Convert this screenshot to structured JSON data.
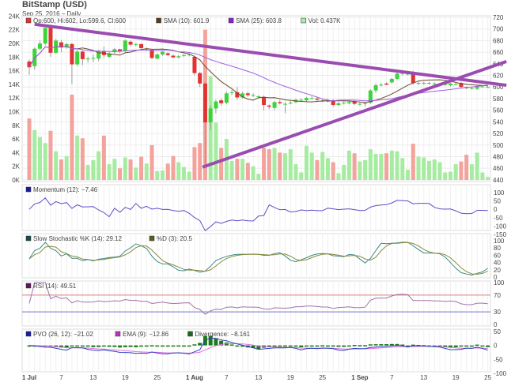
{
  "header": {
    "title": "BitStamp (USD)",
    "subtitle": "Sep 25, 2016 – Daily"
  },
  "colors": {
    "up": "#39d639",
    "down": "#e23232",
    "vol_up": "#a6eca0",
    "vol_down": "#f3a29c",
    "sma10": "#6b4a2a",
    "sma25": "#a15ee0",
    "trendline": "#9a4cb0",
    "momentum": "#5a4fc8",
    "stoch_k": "#3b8a8a",
    "stoch_d": "#8a8a3b",
    "rsi": "#a173a8",
    "rsi_70": "#d77c7c",
    "rsi_30": "#6f6fd0",
    "pvo": "#2f3fc0",
    "pvo_ema": "#e070e0",
    "divergence": "#1b7a1b"
  },
  "legends": {
    "main": [
      {
        "label": "Op:600, Hi:602, Lo:599.6, Cl:600",
        "color": "#e23232"
      },
      {
        "label": "SMA (10): 601.9",
        "color": "#5a3a1a"
      },
      {
        "label": "SMA (25): 603.8",
        "color": "#8a1fd0"
      },
      {
        "label": "Vol: 0.437K",
        "color": "#a6eca0"
      }
    ],
    "momentum": [
      {
        "label": "Momentum (12): −7.46",
        "color": "#1a1aa0"
      }
    ],
    "stoch": [
      {
        "label": "Slow Stochastic %K (14): 29.12",
        "color": "#1a4a4a"
      },
      {
        "label": "%D (3): 20.5",
        "color": "#5a5a1a"
      }
    ],
    "rsi": [
      {
        "label": "RSI (14): 49.51",
        "color": "#5a1a5a"
      }
    ],
    "pvo": [
      {
        "label": "PVO (26, 12): −21.02",
        "color": "#1a1ab0"
      },
      {
        "label": "EMA (9): −12.86",
        "color": "#c030c0"
      },
      {
        "label": "Divergence: −8.161",
        "color": "#1b6a1b"
      }
    ]
  },
  "chart_data": {
    "type": "candlestick",
    "title": "BitStamp (USD)",
    "start_date": "2016-07-01",
    "end_date": "2016-09-25",
    "fields": [
      "open",
      "high",
      "low",
      "close",
      "volume_K"
    ],
    "ohlcv": [
      [
        644,
        647,
        621,
        634,
        9.0
      ],
      [
        636,
        668,
        630,
        666,
        7.3
      ],
      [
        666,
        680,
        664,
        675,
        6.3
      ],
      [
        675,
        702,
        672,
        702,
        5.4
      ],
      [
        702,
        704,
        652,
        659,
        7.2
      ],
      [
        659,
        683,
        657,
        680,
        4.2
      ],
      [
        677,
        681,
        660,
        668,
        3.0
      ],
      [
        668,
        676,
        666,
        674,
        3.5
      ],
      [
        674,
        676,
        605,
        639,
        12.5
      ],
      [
        639,
        664,
        636,
        661,
        6.5
      ],
      [
        661,
        663,
        638,
        648,
        6.1
      ],
      [
        649,
        652,
        642,
        649,
        2.2
      ],
      [
        650,
        656,
        643,
        650,
        2.9
      ],
      [
        649,
        664,
        645,
        662,
        4.2
      ],
      [
        662,
        670,
        650,
        655,
        6.5
      ],
      [
        652,
        660,
        650,
        658,
        2.3
      ],
      [
        660,
        667,
        658,
        665,
        3.1
      ],
      [
        665,
        666,
        658,
        662,
        1.7
      ],
      [
        662,
        682,
        660,
        680,
        3.3
      ],
      [
        678,
        680,
        670,
        673,
        3.0
      ],
      [
        674,
        676,
        670,
        674,
        1.8
      ],
      [
        674,
        675,
        665,
        667,
        3.4
      ],
      [
        666,
        668,
        662,
        666,
        2.4
      ],
      [
        664,
        665,
        648,
        650,
        5.1
      ],
      [
        649,
        658,
        647,
        656,
        1.3
      ],
      [
        656,
        662,
        654,
        661,
        1.4
      ],
      [
        658,
        660,
        653,
        655,
        2.4
      ],
      [
        654,
        656,
        649,
        651,
        3.5
      ],
      [
        651,
        655,
        649,
        653,
        2.6
      ],
      [
        655,
        657,
        652,
        655,
        1.9
      ],
      [
        656,
        658,
        653,
        656,
        1.2
      ],
      [
        652,
        654,
        620,
        624,
        4.8
      ],
      [
        624,
        626,
        600,
        606,
        5.4
      ],
      [
        606,
        608,
        465,
        539,
        22.0
      ],
      [
        539,
        568,
        525,
        563,
        15.2
      ],
      [
        563,
        578,
        555,
        575,
        8.4
      ],
      [
        577,
        580,
        568,
        572,
        4.7
      ],
      [
        573,
        592,
        570,
        589,
        6.0
      ],
      [
        591,
        595,
        586,
        591,
        2.8
      ],
      [
        591,
        600,
        578,
        582,
        3.1
      ],
      [
        582,
        592,
        580,
        589,
        3.1
      ],
      [
        589,
        592,
        583,
        586,
        2.5
      ],
      [
        586,
        589,
        583,
        586,
        2.0
      ],
      [
        584,
        586,
        580,
        584,
        0.9
      ],
      [
        583,
        585,
        560,
        569,
        4.7
      ],
      [
        568,
        570,
        562,
        566,
        4.5
      ],
      [
        564,
        576,
        560,
        574,
        4.7
      ],
      [
        574,
        578,
        570,
        572,
        4.0
      ],
      [
        571,
        574,
        555,
        571,
        3.9
      ],
      [
        573,
        576,
        570,
        573,
        4.5
      ],
      [
        574,
        580,
        572,
        578,
        2.3
      ],
      [
        578,
        580,
        576,
        578,
        1.1
      ],
      [
        577,
        583,
        575,
        581,
        5.0
      ],
      [
        581,
        584,
        579,
        581,
        4.0
      ],
      [
        580,
        582,
        576,
        578,
        2.9
      ],
      [
        576,
        580,
        574,
        576,
        4.1
      ],
      [
        576,
        580,
        574,
        576,
        3.2
      ],
      [
        577,
        579,
        566,
        569,
        2.6
      ],
      [
        569,
        574,
        567,
        572,
        1.0
      ],
      [
        573,
        575,
        570,
        573,
        2.2
      ],
      [
        572,
        576,
        570,
        574,
        4.3
      ],
      [
        575,
        577,
        569,
        571,
        3.9
      ],
      [
        571,
        573,
        568,
        571,
        2.7
      ],
      [
        572,
        574,
        566,
        572,
        2.9
      ],
      [
        573,
        596,
        571,
        594,
        4.5
      ],
      [
        594,
        606,
        590,
        603,
        3.8
      ],
      [
        604,
        607,
        601,
        604,
        3.8
      ],
      [
        606,
        608,
        603,
        604,
        3.9
      ],
      [
        608,
        616,
        606,
        614,
        4.3
      ],
      [
        614,
        626,
        612,
        623,
        4.2
      ],
      [
        624,
        626,
        620,
        624,
        3.2
      ],
      [
        623,
        625,
        620,
        623,
        1.5
      ],
      [
        623,
        628,
        604,
        607,
        5.3
      ],
      [
        606,
        609,
        603,
        607,
        3.4
      ],
      [
        607,
        609,
        604,
        607,
        3.3
      ],
      [
        607,
        609,
        604,
        607,
        2.8
      ],
      [
        606,
        608,
        603,
        606,
        3.0
      ],
      [
        606,
        607,
        603,
        606,
        2.6
      ],
      [
        605,
        607,
        602,
        605,
        1.1
      ],
      [
        603,
        607,
        601,
        606,
        1.2
      ],
      [
        605,
        607,
        603,
        605,
        2.3
      ],
      [
        607,
        609,
        599,
        600,
        2.7
      ],
      [
        600,
        601,
        596,
        598,
        3.7
      ],
      [
        598,
        600,
        596,
        598,
        2.3
      ],
      [
        597,
        603,
        595,
        601,
        4.0
      ],
      [
        601,
        603,
        599,
        601,
        1.1
      ],
      [
        600,
        602,
        599.6,
        600,
        0.437
      ]
    ],
    "price_axis": {
      "range": [
        440,
        720
      ],
      "ticks": [
        440,
        460,
        480,
        500,
        520,
        540,
        560,
        580,
        600,
        620,
        640,
        660,
        680,
        700,
        720
      ],
      "side": "right"
    },
    "volume_axis": {
      "range": [
        0,
        24
      ],
      "ticks": [
        "0K",
        "2K",
        "4K",
        "6K",
        "8K",
        "10K",
        "12K",
        "14K",
        "16K",
        "18K",
        "20K",
        "22K",
        "24K"
      ],
      "side": "left"
    },
    "x_ticks": [
      {
        "index": 0,
        "label": "1 Jul"
      },
      {
        "index": 6,
        "label": "7"
      },
      {
        "index": 12,
        "label": "13"
      },
      {
        "index": 18,
        "label": "19"
      },
      {
        "index": 24,
        "label": "25"
      },
      {
        "index": 31,
        "label": "1 Aug"
      },
      {
        "index": 37,
        "label": "7"
      },
      {
        "index": 43,
        "label": "13"
      },
      {
        "index": 49,
        "label": "19"
      },
      {
        "index": 55,
        "label": "25"
      },
      {
        "index": 62,
        "label": "1 Sep"
      },
      {
        "index": 68,
        "label": "7"
      },
      {
        "index": 74,
        "label": "13"
      },
      {
        "index": 80,
        "label": "19"
      },
      {
        "index": 86,
        "label": "25"
      }
    ],
    "trendlines": [
      {
        "from": {
          "index": 1,
          "price": 708
        },
        "to": {
          "index": 89.5,
          "price": 603
        }
      },
      {
        "from": {
          "index": 32.5,
          "price": 462
        },
        "to": {
          "index": 89.5,
          "price": 644
        }
      }
    ],
    "overlays": [
      {
        "type": "SMA",
        "period": 10
      },
      {
        "type": "SMA",
        "period": 25
      }
    ],
    "indicators": {
      "momentum": {
        "period": 12,
        "range": [
          -150,
          100
        ],
        "ticks": [
          100,
          50,
          0,
          -50,
          -100,
          -150
        ]
      },
      "stochastic": {
        "k": 14,
        "d": 3,
        "range": [
          0,
          100
        ],
        "ticks": [
          100,
          80,
          60,
          40,
          20,
          0
        ]
      },
      "rsi": {
        "period": 14,
        "range": [
          0,
          100
        ],
        "ticks": [
          100,
          70,
          30,
          0
        ],
        "levels": [
          70,
          30
        ]
      },
      "pvo": {
        "fast": 12,
        "slow": 26,
        "signal": 9,
        "range": [
          -100,
          50
        ],
        "ticks": [
          50,
          0,
          -50,
          -100
        ]
      }
    },
    "grid": true
  }
}
